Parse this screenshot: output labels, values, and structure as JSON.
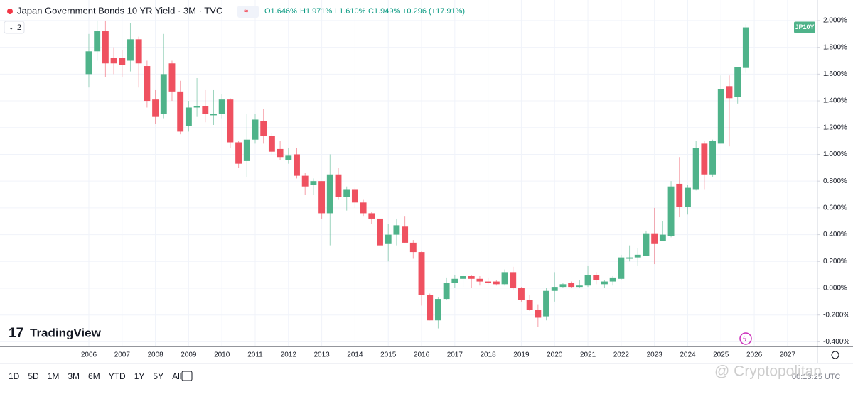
{
  "header": {
    "title": "Japan Government Bonds 10 YR Yield · 3M · TVC",
    "open": "O1.646%",
    "high": "H1.971%",
    "low": "L1.610%",
    "close": "C1.949%",
    "change": "+0.296 (+17.91%)",
    "indicator_count": "2"
  },
  "chart_data": {
    "type": "candlestick",
    "symbol_label": "JP10Y",
    "up_color": "#4fb38a",
    "down_color": "#ef5160",
    "grid": true,
    "xlim": [
      2003.33,
      2027.9
    ],
    "xticks": [
      2006,
      2007,
      2008,
      2009,
      2010,
      2011,
      2012,
      2013,
      2014,
      2015,
      2016,
      2017,
      2018,
      2019,
      2020,
      2021,
      2022,
      2023,
      2024,
      2025,
      2026,
      2027
    ],
    "ylim": [
      -0.435,
      2.058
    ],
    "yticks": [
      {
        "value": 2.0,
        "label": "2.000%"
      },
      {
        "value": 1.8,
        "label": "1.800%"
      },
      {
        "value": 1.6,
        "label": "1.600%"
      },
      {
        "value": 1.4,
        "label": "1.400%"
      },
      {
        "value": 1.2,
        "label": "1.200%"
      },
      {
        "value": 1.0,
        "label": "1.000%"
      },
      {
        "value": 0.8,
        "label": "0.800%"
      },
      {
        "value": 0.6,
        "label": "0.600%"
      },
      {
        "value": 0.4,
        "label": "0.400%"
      },
      {
        "value": 0.2,
        "label": "0.200%"
      },
      {
        "value": 0,
        "label": "0.000%"
      },
      {
        "value": -0.2,
        "label": "-0.200%"
      },
      {
        "value": -0.4,
        "label": "-0.400%"
      }
    ],
    "x": [
      2006,
      2006.25,
      2006.5,
      2006.75,
      2007,
      2007.25,
      2007.5,
      2007.75,
      2008,
      2008.25,
      2008.5,
      2008.75,
      2009,
      2009.25,
      2009.5,
      2009.75,
      2010,
      2010.25,
      2010.5,
      2010.75,
      2011,
      2011.25,
      2011.5,
      2011.75,
      2012,
      2012.25,
      2012.5,
      2012.75,
      2013,
      2013.25,
      2013.5,
      2013.75,
      2014,
      2014.25,
      2014.5,
      2014.75,
      2015,
      2015.25,
      2015.5,
      2015.75,
      2016,
      2016.25,
      2016.5,
      2016.75,
      2017,
      2017.25,
      2017.5,
      2017.75,
      2018,
      2018.25,
      2018.5,
      2018.75,
      2019,
      2019.25,
      2019.5,
      2019.75,
      2020,
      2020.25,
      2020.5,
      2020.75,
      2021,
      2021.25,
      2021.5,
      2021.75,
      2022,
      2022.25,
      2022.5,
      2022.75,
      2023,
      2023.25,
      2023.5,
      2023.75,
      2024,
      2024.25,
      2024.5,
      2024.75,
      2025,
      2025.25,
      2025.5,
      2025.75
    ],
    "open": [
      1.6,
      1.77,
      1.92,
      1.72,
      1.72,
      1.7,
      1.86,
      1.66,
      1.41,
      1.3,
      1.68,
      1.47,
      1.21,
      1.35,
      1.36,
      1.3,
      1.3,
      1.41,
      1.09,
      0.95,
      1.11,
      1.25,
      1.14,
      1.04,
      0.96,
      1.0,
      0.84,
      0.77,
      0.8,
      0.56,
      0.85,
      0.68,
      0.74,
      0.64,
      0.56,
      0.52,
      0.33,
      0.4,
      0.46,
      0.34,
      0.27,
      -0.05,
      -0.24,
      -0.08,
      0.04,
      0.07,
      0.09,
      0.07,
      0.05,
      0.05,
      0.03,
      0.12,
      0.0,
      -0.09,
      -0.16,
      -0.21,
      -0.02,
      0.01,
      0.04,
      0.01,
      0.02,
      0.1,
      0.03,
      0.05,
      0.07,
      0.22,
      0.23,
      0.24,
      0.41,
      0.35,
      0.39,
      0.78,
      0.61,
      0.74,
      1.08,
      0.85,
      1.08,
      1.51,
      1.43,
      1.646
    ],
    "high": [
      1.9,
      2.0,
      2.0,
      1.8,
      1.78,
      1.98,
      1.88,
      1.7,
      1.48,
      1.9,
      1.7,
      1.55,
      1.4,
      1.57,
      1.48,
      1.48,
      1.45,
      1.42,
      1.1,
      1.3,
      1.3,
      1.34,
      1.16,
      1.1,
      1.05,
      1.05,
      0.86,
      0.82,
      0.8,
      1.0,
      0.9,
      0.76,
      0.75,
      0.66,
      0.57,
      0.53,
      0.48,
      0.52,
      0.54,
      0.36,
      0.28,
      -0.04,
      -0.07,
      0.08,
      0.1,
      0.11,
      0.1,
      0.09,
      0.08,
      0.06,
      0.14,
      0.16,
      0.01,
      -0.05,
      -0.12,
      0.0,
      0.12,
      0.04,
      0.05,
      0.06,
      0.17,
      0.12,
      0.06,
      0.09,
      0.25,
      0.32,
      0.3,
      0.43,
      0.6,
      0.5,
      0.8,
      0.98,
      0.77,
      1.1,
      1.1,
      1.11,
      1.59,
      1.59,
      1.65,
      1.971
    ],
    "low": [
      1.5,
      1.7,
      1.58,
      1.6,
      1.58,
      1.62,
      1.5,
      1.35,
      1.23,
      1.27,
      1.4,
      1.15,
      1.17,
      1.28,
      1.24,
      1.22,
      1.27,
      1.05,
      0.9,
      0.83,
      1.08,
      1.08,
      1.0,
      0.96,
      0.93,
      0.82,
      0.7,
      0.7,
      0.52,
      0.32,
      0.66,
      0.58,
      0.6,
      0.54,
      0.48,
      0.3,
      0.2,
      0.32,
      0.34,
      0.22,
      -0.13,
      -0.24,
      -0.3,
      -0.09,
      0.0,
      0.01,
      0.0,
      0.02,
      0.03,
      0.02,
      0.02,
      -0.01,
      -0.1,
      -0.17,
      -0.29,
      -0.24,
      -0.1,
      0.0,
      0.0,
      0.0,
      0.01,
      0.03,
      0.0,
      0.02,
      0.06,
      0.2,
      0.17,
      0.24,
      0.18,
      0.35,
      0.38,
      0.53,
      0.55,
      0.73,
      0.74,
      0.83,
      1.08,
      1.06,
      1.38,
      1.61
    ],
    "close": [
      1.77,
      1.92,
      1.68,
      1.68,
      1.67,
      1.86,
      1.68,
      1.4,
      1.28,
      1.6,
      1.47,
      1.17,
      1.35,
      1.36,
      1.3,
      1.3,
      1.41,
      1.09,
      0.93,
      1.11,
      1.26,
      1.14,
      1.02,
      0.98,
      0.99,
      0.84,
      0.76,
      0.8,
      0.56,
      0.85,
      0.68,
      0.74,
      0.64,
      0.56,
      0.52,
      0.32,
      0.4,
      0.47,
      0.34,
      0.27,
      -0.05,
      -0.24,
      -0.08,
      0.04,
      0.07,
      0.09,
      0.07,
      0.05,
      0.04,
      0.03,
      0.12,
      0.0,
      -0.09,
      -0.16,
      -0.22,
      -0.02,
      0.01,
      0.03,
      0.01,
      0.02,
      0.1,
      0.06,
      0.05,
      0.08,
      0.23,
      0.23,
      0.25,
      0.41,
      0.33,
      0.4,
      0.76,
      0.61,
      0.75,
      1.05,
      0.85,
      1.1,
      1.49,
      1.42,
      1.65,
      1.949
    ]
  },
  "branding": {
    "logo": "TradingView",
    "watermark": "@ Cryptopolitan",
    "clock": "00:13:25 UTC"
  },
  "toolbar": {
    "ranges": [
      "1D",
      "5D",
      "1M",
      "3M",
      "6M",
      "YTD",
      "1Y",
      "5Y",
      "All"
    ]
  }
}
